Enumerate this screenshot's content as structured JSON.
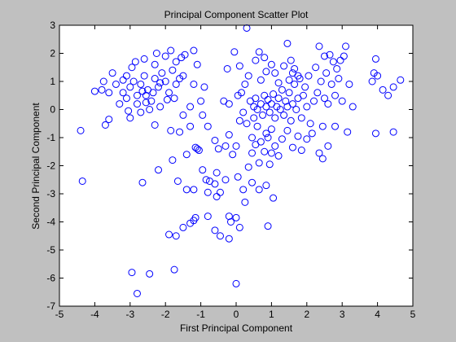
{
  "chart_data": {
    "type": "scatter",
    "title": "Principal Component Scatter Plot",
    "xlabel": "First Principal Component",
    "ylabel": "Second Principal Component",
    "xlim": [
      -5,
      5
    ],
    "ylim": [
      -7,
      3
    ],
    "xticks": [
      "-5",
      "-4",
      "-3",
      "-2",
      "-1",
      "0",
      "1",
      "2",
      "3",
      "4",
      "5"
    ],
    "yticks": [
      "3",
      "2",
      "1",
      "0",
      "-1",
      "-2",
      "-3",
      "-4",
      "-5",
      "-6",
      "-7"
    ],
    "grid": false,
    "marker": "open-circle",
    "marker_color": "#0000ff",
    "series": [
      {
        "points": [
          [
            -3.2,
            0.6
          ],
          [
            -3.1,
            0.4
          ],
          [
            -3.0,
            0.8
          ],
          [
            -2.9,
            1.0
          ],
          [
            -2.8,
            0.5
          ],
          [
            -2.7,
            0.9
          ],
          [
            -2.6,
            1.2
          ],
          [
            -2.5,
            0.7
          ],
          [
            -2.4,
            0.3
          ],
          [
            -2.3,
            1.1
          ],
          [
            -2.2,
            0.8
          ],
          [
            -2.1,
            1.3
          ],
          [
            -2.0,
            1.0
          ],
          [
            -1.9,
            0.6
          ],
          [
            -1.8,
            1.4
          ],
          [
            -1.7,
            0.9
          ],
          [
            -1.6,
            1.1
          ],
          [
            -3.3,
            0.2
          ],
          [
            -3.4,
            0.9
          ],
          [
            -3.5,
            1.3
          ],
          [
            -2.95,
            1.5
          ],
          [
            -2.85,
            1.7
          ],
          [
            -2.6,
            1.8
          ],
          [
            -2.3,
            1.6
          ],
          [
            -2.0,
            1.9
          ],
          [
            -1.85,
            2.1
          ],
          [
            -1.7,
            1.7
          ],
          [
            -2.15,
            0.1
          ],
          [
            -2.45,
            0.0
          ],
          [
            -2.7,
            -0.1
          ],
          [
            -3.0,
            -0.3
          ],
          [
            -3.6,
            0.6
          ],
          [
            -3.8,
            0.7
          ],
          [
            -4.0,
            0.65
          ],
          [
            -3.75,
            1.0
          ],
          [
            -3.2,
            1.05
          ],
          [
            -3.1,
            1.2
          ],
          [
            -2.55,
            0.5
          ],
          [
            -2.35,
            0.6
          ],
          [
            -1.95,
            0.35
          ],
          [
            -1.75,
            0.4
          ],
          [
            -1.5,
            1.2
          ],
          [
            -1.45,
            1.95
          ],
          [
            -1.55,
            1.85
          ],
          [
            -2.25,
            2.0
          ],
          [
            -2.55,
            0.25
          ],
          [
            -2.8,
            0.2
          ],
          [
            -3.05,
            -0.05
          ],
          [
            -2.65,
            0.65
          ],
          [
            -2.15,
            0.95
          ],
          [
            -1.2,
            2.1
          ],
          [
            -1.1,
            1.6
          ],
          [
            -1.2,
            0.9
          ],
          [
            -0.9,
            0.8
          ],
          [
            -1.0,
            0.3
          ],
          [
            -1.3,
            0.1
          ],
          [
            -1.5,
            -0.2
          ],
          [
            -1.6,
            -0.8
          ],
          [
            -1.4,
            -1.6
          ],
          [
            -1.1,
            -1.4
          ],
          [
            -1.3,
            -0.6
          ],
          [
            -0.95,
            -0.2
          ],
          [
            -0.8,
            -0.6
          ],
          [
            -0.6,
            -1.1
          ],
          [
            -0.5,
            -1.4
          ],
          [
            -0.3,
            -1.3
          ],
          [
            -0.2,
            -0.9
          ],
          [
            -0.1,
            -1.6
          ],
          [
            0.0,
            -1.3
          ],
          [
            0.1,
            -0.4
          ],
          [
            0.2,
            -0.1
          ],
          [
            0.3,
            -0.5
          ],
          [
            0.45,
            -1.0
          ],
          [
            0.5,
            -0.3
          ],
          [
            0.6,
            -0.6
          ],
          [
            0.65,
            -1.9
          ],
          [
            0.8,
            -1.5
          ],
          [
            0.9,
            -1.0
          ],
          [
            1.0,
            -0.7
          ],
          [
            1.1,
            -1.3
          ],
          [
            -0.35,
            0.3
          ],
          [
            -0.2,
            0.2
          ],
          [
            0.05,
            0.5
          ],
          [
            0.15,
            0.6
          ],
          [
            0.25,
            0.9
          ],
          [
            0.35,
            1.2
          ],
          [
            0.1,
            1.55
          ],
          [
            -0.05,
            2.05
          ],
          [
            -0.25,
            1.45
          ],
          [
            0.3,
            2.9
          ],
          [
            0.4,
            0.3
          ],
          [
            0.5,
            0.1
          ],
          [
            0.55,
            0.4
          ],
          [
            0.6,
            0.0
          ],
          [
            0.7,
            0.2
          ],
          [
            0.75,
            -0.2
          ],
          [
            0.8,
            0.5
          ],
          [
            0.85,
            0.1
          ],
          [
            0.9,
            0.35
          ],
          [
            0.95,
            -0.1
          ],
          [
            1.0,
            0.2
          ],
          [
            1.05,
            0.55
          ],
          [
            1.1,
            -0.3
          ],
          [
            1.15,
            0.1
          ],
          [
            1.2,
            0.4
          ],
          [
            1.25,
            0.0
          ],
          [
            1.3,
            0.7
          ],
          [
            1.35,
            -0.2
          ],
          [
            1.4,
            0.3
          ],
          [
            1.45,
            0.1
          ],
          [
            1.5,
            0.6
          ],
          [
            1.55,
            -0.4
          ],
          [
            1.6,
            0.2
          ],
          [
            1.65,
            0.9
          ],
          [
            1.7,
            0.0
          ],
          [
            1.75,
            0.4
          ],
          [
            1.8,
            1.1
          ],
          [
            1.85,
            -0.3
          ],
          [
            1.9,
            0.5
          ],
          [
            1.95,
            0.8
          ],
          [
            2.0,
            0.1
          ],
          [
            2.05,
            1.2
          ],
          [
            2.1,
            -0.5
          ],
          [
            2.2,
            0.3
          ],
          [
            2.25,
            1.5
          ],
          [
            2.3,
            0.6
          ],
          [
            2.4,
            1.0
          ],
          [
            2.45,
            -0.6
          ],
          [
            2.5,
            0.4
          ],
          [
            2.55,
            1.3
          ],
          [
            2.6,
            0.2
          ],
          [
            2.7,
            0.9
          ],
          [
            2.75,
            1.7
          ],
          [
            2.8,
            0.5
          ],
          [
            2.9,
            1.1
          ],
          [
            3.0,
            0.3
          ],
          [
            3.05,
            1.9
          ],
          [
            3.1,
            2.25
          ],
          [
            3.2,
            0.9
          ],
          [
            3.3,
            0.1
          ],
          [
            0.7,
            1.05
          ],
          [
            0.85,
            1.35
          ],
          [
            1.0,
            1.6
          ],
          [
            1.1,
            1.3
          ],
          [
            1.2,
            0.95
          ],
          [
            1.35,
            1.55
          ],
          [
            1.45,
            2.35
          ],
          [
            1.55,
            1.75
          ],
          [
            1.65,
            1.45
          ],
          [
            1.75,
            1.2
          ],
          [
            0.55,
            1.75
          ],
          [
            0.65,
            2.05
          ],
          [
            0.8,
            1.85
          ],
          [
            1.5,
            1.05
          ],
          [
            1.6,
            1.3
          ],
          [
            2.35,
            2.25
          ],
          [
            2.5,
            1.9
          ],
          [
            2.65,
            1.95
          ],
          [
            2.85,
            1.45
          ],
          [
            2.95,
            1.75
          ],
          [
            0.45,
            -1.55
          ],
          [
            0.55,
            -1.25
          ],
          [
            0.7,
            -1.15
          ],
          [
            0.85,
            -0.85
          ],
          [
            1.0,
            -1.55
          ],
          [
            1.2,
            -1.65
          ],
          [
            1.3,
            -1.05
          ],
          [
            1.45,
            -0.75
          ],
          [
            1.6,
            -1.35
          ],
          [
            1.75,
            -0.95
          ],
          [
            1.85,
            -1.45
          ],
          [
            2.0,
            -1.05
          ],
          [
            2.15,
            -0.85
          ],
          [
            2.35,
            -1.55
          ],
          [
            2.45,
            -1.75
          ],
          [
            2.6,
            -1.3
          ],
          [
            2.8,
            -0.6
          ],
          [
            3.15,
            -0.8
          ],
          [
            0.35,
            -2.05
          ],
          [
            0.95,
            -1.95
          ],
          [
            3.9,
            1.3
          ],
          [
            3.95,
            1.8
          ],
          [
            3.85,
            1.0
          ],
          [
            4.0,
            1.2
          ],
          [
            4.15,
            0.7
          ],
          [
            4.3,
            0.5
          ],
          [
            4.45,
            0.8
          ],
          [
            4.65,
            1.05
          ],
          [
            4.45,
            -0.8
          ],
          [
            3.95,
            -0.85
          ],
          [
            -4.4,
            -0.75
          ],
          [
            -4.35,
            -2.55
          ],
          [
            -3.7,
            -0.55
          ],
          [
            -3.6,
            -0.35
          ],
          [
            -2.65,
            -2.6
          ],
          [
            -2.2,
            -2.15
          ],
          [
            -1.8,
            -1.8
          ],
          [
            -1.65,
            -2.55
          ],
          [
            -1.4,
            -2.85
          ],
          [
            -1.2,
            -2.85
          ],
          [
            -1.15,
            -1.35
          ],
          [
            -1.05,
            -1.45
          ],
          [
            -0.95,
            -2.15
          ],
          [
            -0.85,
            -2.5
          ],
          [
            -0.8,
            -2.95
          ],
          [
            -0.75,
            -2.55
          ],
          [
            -0.6,
            -2.65
          ],
          [
            -0.55,
            -2.25
          ],
          [
            -0.45,
            -2.95
          ],
          [
            -0.3,
            -2.5
          ],
          [
            -0.2,
            -3.8
          ],
          [
            -0.15,
            -4.0
          ],
          [
            0.0,
            -3.85
          ],
          [
            0.05,
            -2.4
          ],
          [
            0.2,
            -2.85
          ],
          [
            0.25,
            -3.3
          ],
          [
            0.45,
            -2.6
          ],
          [
            0.65,
            -2.85
          ],
          [
            0.85,
            -2.7
          ],
          [
            1.05,
            -3.15
          ],
          [
            -0.8,
            -3.8
          ],
          [
            -0.6,
            -4.3
          ],
          [
            -0.45,
            -4.5
          ],
          [
            -0.2,
            -4.6
          ],
          [
            0.1,
            -4.2
          ],
          [
            0.9,
            -4.15
          ],
          [
            -1.15,
            -3.85
          ],
          [
            -1.3,
            -4.05
          ],
          [
            -1.5,
            -4.2
          ],
          [
            -1.7,
            -4.5
          ],
          [
            -1.9,
            -4.45
          ],
          [
            -2.45,
            -5.85
          ],
          [
            -2.95,
            -5.8
          ],
          [
            -2.8,
            -6.55
          ],
          [
            -1.75,
            -5.7
          ],
          [
            0.0,
            -6.2
          ],
          [
            -1.2,
            -3.95
          ],
          [
            -0.55,
            -3.1
          ],
          [
            -2.3,
            -0.55
          ],
          [
            -1.85,
            -0.75
          ]
        ]
      }
    ]
  }
}
